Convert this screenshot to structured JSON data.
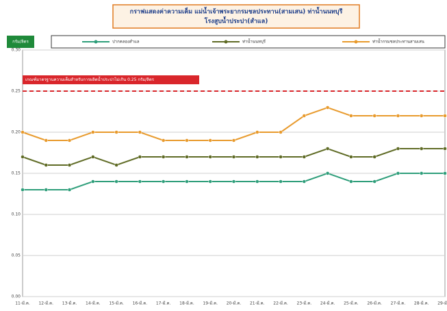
{
  "chart_data": {
    "type": "line",
    "title": "กราฟแสดงค่าความเค็ม แม่น้ำเจ้าพระยากรมชลประทาน(สามเสน) ท่าน้ำนนทบุรี",
    "subtitle": "โรงสูบน้ำประปา(สำแล)",
    "y_label": "กรัม/ลิตร",
    "annotation": "เกณฑ์มาตรฐานความเค็มสำหรับการผลิตน้ำประปาไม่เกิน 0.25 กรัม/ลิตร",
    "threshold": 0.25,
    "threshold_color": "#d9262b",
    "categories": [
      "11-มี.ค.",
      "12-มี.ค.",
      "13-มี.ค.",
      "14-มี.ค.",
      "15-มี.ค.",
      "16-มี.ค.",
      "17-มี.ค.",
      "18-มี.ค.",
      "19-มี.ค.",
      "20-มี.ค.",
      "21-มี.ค.",
      "22-มี.ค.",
      "23-มี.ค.",
      "24-มี.ค.",
      "25-มี.ค.",
      "26-มี.ค.",
      "27-มี.ค.",
      "28-มี.ค.",
      "29-มี.ค."
    ],
    "series": [
      {
        "name": "ปากคลองสำแล",
        "color": "#2e9e7a",
        "values": [
          0.13,
          0.13,
          0.13,
          0.14,
          0.14,
          0.14,
          0.14,
          0.14,
          0.14,
          0.14,
          0.14,
          0.14,
          0.14,
          0.15,
          0.14,
          0.14,
          0.15,
          0.15,
          0.15
        ]
      },
      {
        "name": "ท่าน้ำนนทบุรี",
        "color": "#5f6b25",
        "values": [
          0.17,
          0.16,
          0.16,
          0.17,
          0.16,
          0.17,
          0.17,
          0.17,
          0.17,
          0.17,
          0.17,
          0.17,
          0.17,
          0.18,
          0.17,
          0.17,
          0.18,
          0.18,
          0.18
        ]
      },
      {
        "name": "ท่าน้ำกรมชลประทานสามเสน",
        "color": "#e89a2c",
        "values": [
          0.2,
          0.19,
          0.19,
          0.2,
          0.2,
          0.2,
          0.19,
          0.19,
          0.19,
          0.19,
          0.2,
          0.2,
          0.22,
          0.23,
          0.22,
          0.22,
          0.22,
          0.22,
          0.22
        ]
      }
    ],
    "ylim": [
      0,
      0.3
    ],
    "yticks": [
      {
        "value": 0,
        "label": "0.00"
      },
      {
        "value": 0.05,
        "label": "0.05"
      },
      {
        "value": 0.1,
        "label": "0.10"
      },
      {
        "value": 0.15,
        "label": "0.15"
      },
      {
        "value": 0.2,
        "label": "0.20"
      },
      {
        "value": 0.25,
        "label": "0.25"
      },
      {
        "value": 0.3,
        "label": "0.30"
      }
    ],
    "grid": true
  }
}
